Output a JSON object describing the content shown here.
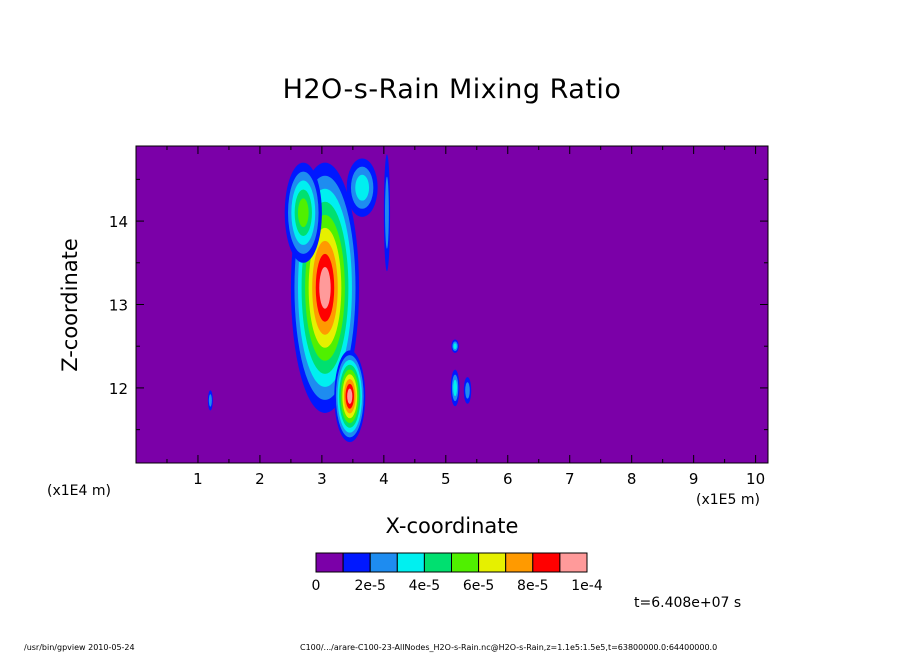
{
  "chart_data": {
    "type": "heatmap",
    "title": "H2O-s-Rain Mixing Ratio",
    "xlabel": "X-coordinate",
    "ylabel": "Z-coordinate",
    "x_scale_note": "(x1E4 m)",
    "x_scale_note_2": "(x1E5 m)",
    "xlim": [
      0,
      10.2
    ],
    "ylim": [
      11.1,
      14.9
    ],
    "x_ticks": [
      1,
      2,
      3,
      4,
      5,
      6,
      7,
      8,
      9,
      10
    ],
    "y_ticks": [
      12,
      13,
      14
    ],
    "background_value": 0,
    "colorbar": {
      "colors": [
        "#7b00a8",
        "#0018ff",
        "#1e8cf0",
        "#00f0f0",
        "#00e070",
        "#50f000",
        "#e6f000",
        "#ff9a00",
        "#ff0000",
        "#ff9a9a"
      ],
      "tick_labels": [
        "0",
        "2e-5",
        "4e-5",
        "6e-5",
        "8e-5",
        "1e-4"
      ]
    },
    "features": [
      {
        "x": 3.05,
        "z": 13.2,
        "sx": 0.55,
        "sz": 1.5,
        "peak": 10
      },
      {
        "x": 3.45,
        "z": 11.9,
        "sx": 0.25,
        "sz": 0.55,
        "peak": 10
      },
      {
        "x": 2.7,
        "z": 14.1,
        "sx": 0.3,
        "sz": 0.6,
        "peak": 5
      },
      {
        "x": 3.65,
        "z": 14.4,
        "sx": 0.25,
        "sz": 0.35,
        "peak": 3
      },
      {
        "x": 4.05,
        "z": 14.1,
        "sx": 0.05,
        "sz": 0.7,
        "peak": 2
      },
      {
        "x": 5.15,
        "z": 12.5,
        "sx": 0.06,
        "sz": 0.08,
        "peak": 3
      },
      {
        "x": 5.15,
        "z": 12.0,
        "sx": 0.07,
        "sz": 0.22,
        "peak": 3
      },
      {
        "x": 5.35,
        "z": 11.97,
        "sx": 0.06,
        "sz": 0.16,
        "peak": 2
      },
      {
        "x": 1.2,
        "z": 11.85,
        "sx": 0.04,
        "sz": 0.12,
        "peak": 2
      }
    ]
  },
  "time_label": "t=6.408e+07 s",
  "footer_left": "/usr/bin/gpview  2010-05-24",
  "footer_right": "C100/.../arare-C100-23-AllNodes_H2O-s-Rain.nc@H2O-s-Rain,z=1.1e5:1.5e5,t=63800000.0:64400000.0"
}
